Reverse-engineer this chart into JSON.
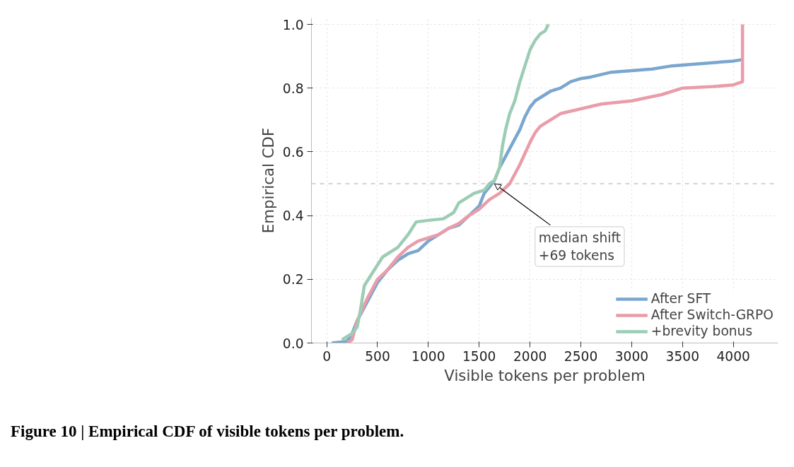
{
  "chart_data": {
    "type": "line",
    "xlabel": "Visible tokens per problem",
    "ylabel": "Empirical CDF",
    "xlim": [
      -150,
      4440
    ],
    "ylim": [
      0,
      1.02
    ],
    "xticks": [
      0,
      500,
      1000,
      1500,
      2000,
      2500,
      3000,
      3500,
      4000
    ],
    "yticks": [
      {
        "value": 0,
        "label": "0.0"
      },
      0.2,
      0.4,
      0.6,
      0.8,
      {
        "value": 1,
        "label": "1.0"
      }
    ],
    "grid": true,
    "legend": "bottom right",
    "line_style": "solid",
    "marker": "none",
    "series": [
      {
        "name": "After SFT",
        "color": "#7aa6cf",
        "x": [
          50,
          200,
          250,
          300,
          400,
          500,
          600,
          700,
          800,
          900,
          1000,
          1100,
          1200,
          1300,
          1400,
          1500,
          1550,
          1600,
          1650,
          1700,
          1800,
          1900,
          1950,
          2000,
          2050,
          2100,
          2200,
          2300,
          2400,
          2500,
          2600,
          2800,
          3000,
          3200,
          3400,
          3600,
          3800,
          4000,
          4100
        ],
        "values": [
          0,
          0.005,
          0.03,
          0.07,
          0.13,
          0.19,
          0.23,
          0.26,
          0.28,
          0.29,
          0.32,
          0.34,
          0.36,
          0.37,
          0.4,
          0.43,
          0.47,
          0.49,
          0.51,
          0.55,
          0.61,
          0.67,
          0.71,
          0.74,
          0.76,
          0.77,
          0.79,
          0.8,
          0.82,
          0.83,
          0.835,
          0.85,
          0.855,
          0.86,
          0.87,
          0.875,
          0.88,
          0.885,
          0.89
        ]
      },
      {
        "name": "After Switch-GRPO",
        "color": "#e99ca9",
        "x": [
          200,
          250,
          300,
          400,
          500,
          600,
          700,
          800,
          900,
          1000,
          1100,
          1200,
          1300,
          1400,
          1500,
          1600,
          1700,
          1800,
          1900,
          2000,
          2050,
          2100,
          2200,
          2300,
          2500,
          2700,
          3000,
          3300,
          3500,
          3800,
          4000,
          4090,
          4090
        ],
        "values": [
          0,
          0.01,
          0.07,
          0.14,
          0.2,
          0.23,
          0.27,
          0.3,
          0.32,
          0.33,
          0.34,
          0.36,
          0.375,
          0.4,
          0.42,
          0.45,
          0.47,
          0.5,
          0.56,
          0.63,
          0.66,
          0.68,
          0.7,
          0.72,
          0.735,
          0.75,
          0.76,
          0.78,
          0.8,
          0.805,
          0.81,
          0.82,
          1.0
        ]
      },
      {
        "name": "+brevity bonus",
        "color": "#9ccdb4",
        "x": [
          150,
          200,
          250,
          300,
          330,
          370,
          450,
          550,
          700,
          800,
          880,
          1000,
          1150,
          1250,
          1300,
          1450,
          1550,
          1600,
          1650,
          1700,
          1730,
          1760,
          1800,
          1850,
          1900,
          1950,
          2000,
          2050,
          2100,
          2150,
          2180
        ],
        "values": [
          0.01,
          0.02,
          0.03,
          0.05,
          0.1,
          0.18,
          0.22,
          0.27,
          0.3,
          0.34,
          0.38,
          0.385,
          0.39,
          0.41,
          0.44,
          0.47,
          0.48,
          0.5,
          0.51,
          0.55,
          0.62,
          0.67,
          0.72,
          0.76,
          0.82,
          0.87,
          0.92,
          0.95,
          0.97,
          0.98,
          1.0
        ]
      }
    ],
    "ref_lines": [
      {
        "axis": "y",
        "value": 0.5,
        "color": "#aaaaaa",
        "line_style": "dashed"
      }
    ],
    "annotations": [
      {
        "text": "median shift\n+69 tokens",
        "x": 1650,
        "y": 0.5
      },
      "Figure 10 | Empirical CDF of visible tokens per problem."
    ]
  }
}
